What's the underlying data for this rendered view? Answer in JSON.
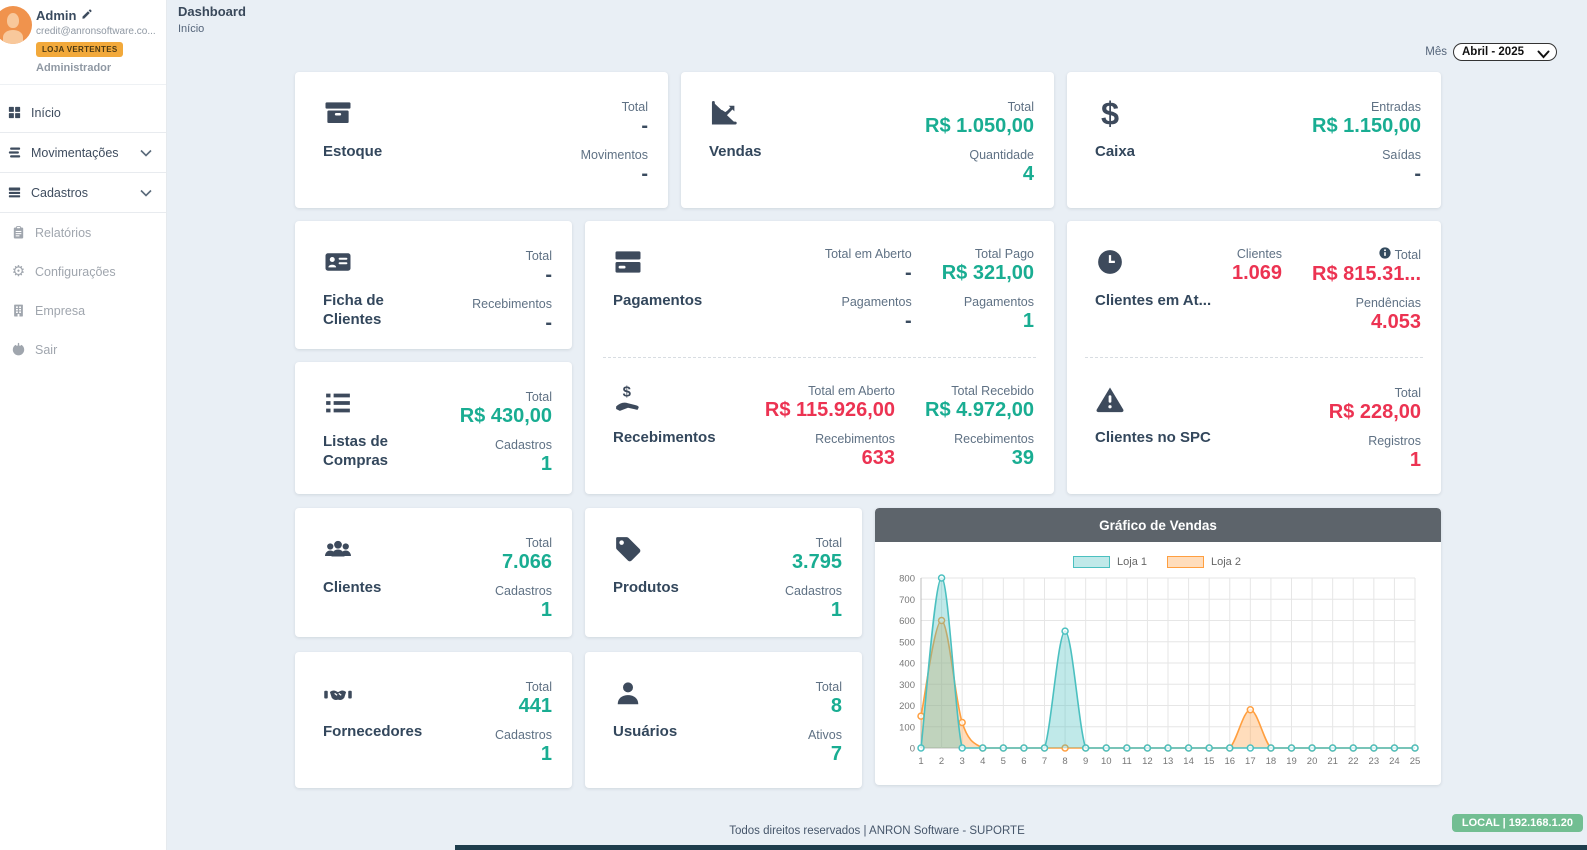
{
  "sidebar": {
    "user": {
      "name": "Admin",
      "email": "credit@anronsoftware.co...",
      "badge": "LOJA VERTENTES",
      "role": "Administrador"
    },
    "menu": [
      {
        "label": "Início"
      },
      {
        "label": "Movimentações"
      },
      {
        "label": "Cadastros"
      },
      {
        "label": "Relatórios"
      },
      {
        "label": "Configurações"
      },
      {
        "label": "Empresa"
      },
      {
        "label": "Sair"
      }
    ]
  },
  "header": {
    "title": "Dashboard",
    "breadcrumb": "Início",
    "month_label": "Mês",
    "month_value": "Abril - 2025"
  },
  "cards": {
    "estoque": {
      "title": "Estoque",
      "stats": [
        {
          "label": "Total",
          "value": "-"
        },
        {
          "label": "Movimentos",
          "value": "-"
        }
      ]
    },
    "vendas": {
      "title": "Vendas",
      "stats": [
        {
          "label": "Total",
          "value": "R$ 1.050,00"
        },
        {
          "label": "Quantidade",
          "value": "4"
        }
      ]
    },
    "caixa": {
      "title": "Caixa",
      "stats": [
        {
          "label": "Entradas",
          "value": "R$ 1.150,00"
        },
        {
          "label": "Saídas",
          "value": "-"
        }
      ]
    },
    "ficha": {
      "title": "Ficha de Clientes",
      "stats": [
        {
          "label": "Total",
          "value": "-"
        },
        {
          "label": "Recebimentos",
          "value": "-"
        }
      ]
    },
    "pagamentos": {
      "title": "Pagamentos",
      "col1": [
        {
          "label": "Total em Aberto",
          "value": "-"
        },
        {
          "label": "Pagamentos",
          "value": "-"
        }
      ],
      "col2": [
        {
          "label": "Total Pago",
          "value": "R$ 321,00"
        },
        {
          "label": "Pagamentos",
          "value": "1"
        }
      ]
    },
    "recebimentos": {
      "title": "Recebimentos",
      "col1": [
        {
          "label": "Total em Aberto",
          "value": "R$ 115.926,00"
        },
        {
          "label": "Recebimentos",
          "value": "633"
        }
      ],
      "col2": [
        {
          "label": "Total Recebido",
          "value": "R$ 4.972,00"
        },
        {
          "label": "Recebimentos",
          "value": "39"
        }
      ]
    },
    "atraso": {
      "title": "Clientes em At...",
      "clientes": {
        "label": "Clientes",
        "value": "1.069"
      },
      "total": {
        "label": "Total",
        "value": "R$ 815.31..."
      },
      "pendencias": {
        "label": "Pendências",
        "value": "4.053"
      }
    },
    "spc": {
      "title": "Clientes no SPC",
      "stats": [
        {
          "label": "Total",
          "value": "R$ 228,00"
        },
        {
          "label": "Registros",
          "value": "1"
        }
      ]
    },
    "listas": {
      "title": "Listas de Compras",
      "stats": [
        {
          "label": "Total",
          "value": "R$ 430,00"
        },
        {
          "label": "Cadastros",
          "value": "1"
        }
      ]
    },
    "clientes": {
      "title": "Clientes",
      "stats": [
        {
          "label": "Total",
          "value": "7.066"
        },
        {
          "label": "Cadastros",
          "value": "1"
        }
      ]
    },
    "produtos": {
      "title": "Produtos",
      "stats": [
        {
          "label": "Total",
          "value": "3.795"
        },
        {
          "label": "Cadastros",
          "value": "1"
        }
      ]
    },
    "fornecedores": {
      "title": "Fornecedores",
      "stats": [
        {
          "label": "Total",
          "value": "441"
        },
        {
          "label": "Cadastros",
          "value": "1"
        }
      ]
    },
    "usuarios": {
      "title": "Usuários",
      "stats": [
        {
          "label": "Total",
          "value": "8"
        },
        {
          "label": "Ativos",
          "value": "7"
        }
      ]
    }
  },
  "chart_data": {
    "type": "area",
    "title": "Gráfico de Vendas",
    "x": [
      1,
      2,
      3,
      4,
      5,
      6,
      7,
      8,
      9,
      10,
      11,
      12,
      13,
      14,
      15,
      16,
      17,
      18,
      19,
      20,
      21,
      22,
      23,
      24,
      25
    ],
    "series": [
      {
        "name": "Loja 1",
        "color": "#4bc0c0",
        "fill": "rgba(75,192,192,0.35)",
        "values": [
          0,
          800,
          0,
          0,
          0,
          0,
          0,
          550,
          0,
          0,
          0,
          0,
          0,
          0,
          0,
          0,
          0,
          0,
          0,
          0,
          0,
          0,
          0,
          0,
          0
        ]
      },
      {
        "name": "Loja 2",
        "color": "#ff9f40",
        "fill": "rgba(255,159,64,0.35)",
        "values": [
          150,
          600,
          120,
          0,
          0,
          0,
          0,
          0,
          0,
          0,
          0,
          0,
          0,
          0,
          0,
          0,
          180,
          0,
          0,
          0,
          0,
          0,
          0,
          0,
          0
        ]
      }
    ],
    "ylim": [
      0,
      800
    ],
    "yticks": [
      0,
      100,
      200,
      300,
      400,
      500,
      600,
      700,
      800
    ],
    "grid": true,
    "legend_position": "top"
  },
  "footer": {
    "copyright": "Todos direitos reservados | ANRON Software - SUPORTE",
    "env_badge": "LOCAL | 192.168.1.20"
  },
  "colors": {
    "accent_teal": "#19ad92",
    "alert_red": "#ec3352",
    "badge_orange": "#f2a93b",
    "env_green": "#72be92",
    "chart_teal": "#4bc0c0",
    "chart_orange": "#ff9f40",
    "chart_header_gray": "#5d646b",
    "background": "#e9eff5"
  }
}
